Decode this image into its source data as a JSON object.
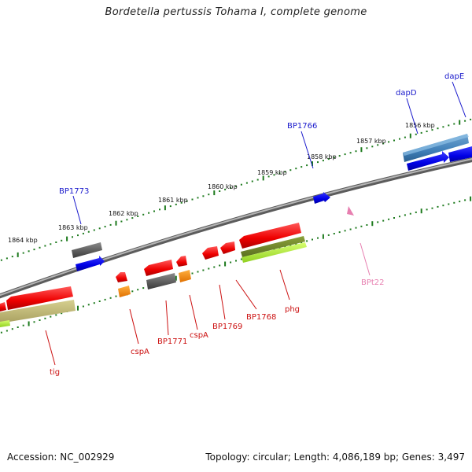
{
  "title": "Bordetella pertussis Tohama I, complete genome",
  "footer": {
    "accession": "Accession: NC_002929",
    "topology": "Topology: circular; Length: 4,086,189 bp; Genes: 3,497"
  },
  "colors": {
    "backbone": "#8a8a8a",
    "tick": "#1d7a1d",
    "forward_label": "#1a1acc",
    "reverse_label": "#cc1111",
    "rna_label": "#e77fb0"
  },
  "scale_labels": [
    "1856 kbp",
    "1857 kbp",
    "1858 kbp",
    "1859 kbp",
    "1860 kbp",
    "1861 kbp",
    "1862 kbp",
    "1863 kbp",
    "1864 kbp"
  ],
  "gene_labels": {
    "forward": [
      "dapE",
      "dapD",
      "BP1766",
      "BP1773"
    ],
    "reverse": [
      "phg",
      "BP1768",
      "BP1769",
      "cspA",
      "BP1771",
      "cspA",
      "tig"
    ],
    "rna": [
      "BPt22"
    ]
  }
}
